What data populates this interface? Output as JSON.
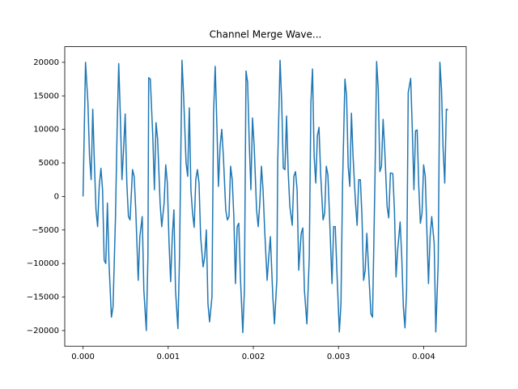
{
  "chart_data": {
    "type": "line",
    "title": "Channel Merge Wave...",
    "x": [
      0,
      2.9e-05,
      5.7e-05,
      7.6e-05,
      9.5e-05,
      0.000114,
      0.000133,
      0.000152,
      0.000171,
      0.00019,
      0.00021,
      0.000229,
      0.000248,
      0.000267,
      0.000286,
      0.000305,
      0.000333,
      0.000352,
      0.000381,
      0.0004,
      0.000419,
      0.000438,
      0.000457,
      0.000476,
      0.000495,
      0.000514,
      0.000533,
      0.000552,
      0.000581,
      0.0006,
      0.000619,
      0.000648,
      0.000667,
      0.000695,
      0.000714,
      0.000743,
      0.000762,
      0.000771,
      0.00079,
      0.000819,
      0.000838,
      0.000857,
      0.000876,
      0.000905,
      0.000924,
      0.000952,
      0.000971,
      0.00099,
      0.00101,
      0.001029,
      0.001048,
      0.001067,
      0.001086,
      0.001114,
      0.001133,
      0.001162,
      0.001181,
      0.00121,
      0.001229,
      0.001248,
      0.001267,
      0.001286,
      0.001305,
      0.001324,
      0.001343,
      0.001362,
      0.001381,
      0.00141,
      0.001429,
      0.001448,
      0.001467,
      0.001486,
      0.001514,
      0.001533,
      0.001552,
      0.001571,
      0.00159,
      0.00161,
      0.001629,
      0.001648,
      0.001676,
      0.001695,
      0.001714,
      0.001733,
      0.001752,
      0.001771,
      0.00179,
      0.00181,
      0.001829,
      0.001848,
      0.001876,
      0.001895,
      0.001914,
      0.001933,
      0.001952,
      0.001971,
      0.00199,
      0.00201,
      0.002038,
      0.002057,
      0.002076,
      0.002095,
      0.002114,
      0.002133,
      0.002162,
      0.002181,
      0.0022,
      0.002229,
      0.002248,
      0.002276,
      0.002286,
      0.002314,
      0.002333,
      0.002352,
      0.002371,
      0.00239,
      0.00241,
      0.002429,
      0.002457,
      0.002476,
      0.002495,
      0.002514,
      0.002533,
      0.002562,
      0.002581,
      0.0026,
      0.002629,
      0.002657,
      0.002676,
      0.002695,
      0.002714,
      0.002733,
      0.002752,
      0.002771,
      0.00279,
      0.002819,
      0.002838,
      0.002857,
      0.002876,
      0.002895,
      0.002924,
      0.002943,
      0.002962,
      0.002981,
      0.00301,
      0.003029,
      0.003048,
      0.003076,
      0.003095,
      0.003114,
      0.003133,
      0.003152,
      0.003171,
      0.0032,
      0.003219,
      0.003238,
      0.003257,
      0.003276,
      0.003295,
      0.003314,
      0.003333,
      0.003362,
      0.003381,
      0.0034,
      0.003429,
      0.003448,
      0.003467,
      0.003486,
      0.003505,
      0.003524,
      0.003543,
      0.003571,
      0.00359,
      0.00361,
      0.003638,
      0.003657,
      0.003676,
      0.003695,
      0.003724,
      0.003743,
      0.003762,
      0.003781,
      0.0038,
      0.003819,
      0.003848,
      0.003867,
      0.003886,
      0.003905,
      0.003924,
      0.003943,
      0.003962,
      0.003981,
      0.004,
      0.004019,
      0.004038,
      0.004057,
      0.004076,
      0.004095,
      0.004124,
      0.004143,
      0.004171,
      0.004191,
      0.00421,
      0.004229,
      0.004248,
      0.004267,
      0.004286
    ],
    "series": [
      {
        "color": "#1f77b4",
        "values": [
          0,
          20000,
          14000,
          6000,
          2500,
          13000,
          5000,
          -2000,
          -4500,
          1500,
          4200,
          1000,
          -9500,
          -10000,
          -1000,
          -10000,
          -18000,
          -16500,
          -3000,
          10000,
          19800,
          12000,
          2500,
          7000,
          12300,
          2000,
          -3000,
          -3500,
          4000,
          3000,
          -2000,
          -12500,
          -6000,
          -3000,
          -14000,
          -20000,
          -9000,
          17700,
          17500,
          9000,
          1000,
          11000,
          8500,
          -1000,
          -4500,
          -1000,
          4700,
          2000,
          -7000,
          -12700,
          -6000,
          -2000,
          -14000,
          -19700,
          -9000,
          20300,
          15000,
          5000,
          3000,
          13200,
          1000,
          -2500,
          -4600,
          2500,
          4000,
          2000,
          -6000,
          -10500,
          -9000,
          -5000,
          -16000,
          -18700,
          -15000,
          12500,
          19400,
          11000,
          1500,
          7500,
          10000,
          6000,
          -2000,
          -3500,
          -3000,
          4500,
          2500,
          -3000,
          -13000,
          -4500,
          -4000,
          -12000,
          -20300,
          -14000,
          18700,
          17000,
          8000,
          1000,
          11700,
          7500,
          -2000,
          -4500,
          -1000,
          4500,
          1000,
          -5000,
          -12500,
          -9000,
          -6000,
          -15000,
          -19000,
          -12500,
          5000,
          20300,
          14000,
          4200,
          4000,
          12000,
          3500,
          -1500,
          -4300,
          3000,
          3700,
          1000,
          -11000,
          -5500,
          -4700,
          -14000,
          -19000,
          -9000,
          14000,
          19000,
          6000,
          2000,
          9000,
          10300,
          3500,
          -3500,
          -2500,
          4500,
          3200,
          -3000,
          -13000,
          -4500,
          -4500,
          -11000,
          -20200,
          -16000,
          2000,
          17500,
          15000,
          4500,
          1500,
          12400,
          6000,
          -1000,
          -4300,
          2500,
          2500,
          -3000,
          -12500,
          -11000,
          -5500,
          -13000,
          -17500,
          -18000,
          3000,
          20100,
          16000,
          3700,
          4500,
          11500,
          7000,
          -1500,
          -3200,
          3500,
          3400,
          -2000,
          -12000,
          -8000,
          -3800,
          -9000,
          -16500,
          -19600,
          -14000,
          15500,
          17600,
          10000,
          1000,
          9800,
          9900,
          1500,
          -4000,
          -2500,
          4700,
          3000,
          -5000,
          -13000,
          -6000,
          -3000,
          -7000,
          -20200,
          -10000,
          20000,
          16000,
          7000,
          2000,
          13000,
          12900
        ]
      }
    ],
    "xlim": [
      -0.000215,
      0.0045
    ],
    "ylim": [
      -22330,
      22330
    ],
    "xticks": [
      {
        "value": 0,
        "label": "0.000"
      },
      {
        "value": 0.001,
        "label": "0.001"
      },
      {
        "value": 0.002,
        "label": "0.002"
      },
      {
        "value": 0.003,
        "label": "0.003"
      },
      {
        "value": 0.004,
        "label": "0.004"
      }
    ],
    "yticks": [
      {
        "value": -20000,
        "label": "−20000"
      },
      {
        "value": -15000,
        "label": "−15000"
      },
      {
        "value": -10000,
        "label": "−10000"
      },
      {
        "value": -5000,
        "label": "−5000"
      },
      0,
      5000,
      10000,
      15000,
      20000
    ]
  }
}
